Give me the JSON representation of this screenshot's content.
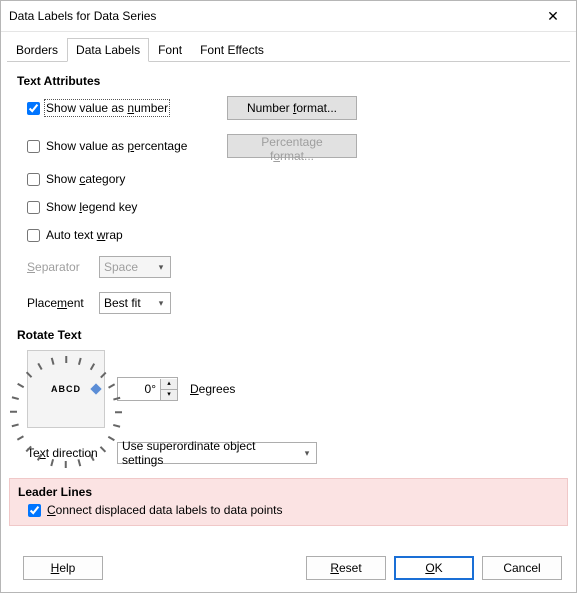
{
  "window": {
    "title": "Data Labels for Data Series",
    "series_name": " "
  },
  "tabs": {
    "borders": "Borders",
    "data_labels": "Data Labels",
    "font": "Font",
    "font_effects": "Font Effects"
  },
  "sections": {
    "text_attributes": "Text Attributes",
    "rotate_text": "Rotate Text",
    "leader_lines": "Leader Lines"
  },
  "checks": {
    "show_value_number": {
      "pre": "Show value as ",
      "u": "n",
      "post": "umber",
      "checked": true
    },
    "show_value_percentage": {
      "pre": "Show value as ",
      "u": "p",
      "post": "ercentage",
      "checked": false
    },
    "show_category": {
      "pre": "Show ",
      "u": "c",
      "post": "ategory",
      "checked": false
    },
    "show_legend_key": {
      "pre": "Show ",
      "u": "l",
      "post": "egend key",
      "checked": false
    },
    "auto_text_wrap": {
      "pre": "Auto text ",
      "u": "w",
      "post": "rap",
      "checked": false
    },
    "connect_leader": {
      "pre": "",
      "u": "C",
      "post": "onnect displaced data labels to data points",
      "checked": true
    }
  },
  "buttons": {
    "number_format": {
      "pre": "Number ",
      "u": "f",
      "post": "ormat..."
    },
    "percentage_format": {
      "pre": "Percentage f",
      "u": "o",
      "post": "rmat..."
    },
    "help": {
      "pre": "",
      "u": "H",
      "post": "elp"
    },
    "reset": {
      "pre": "",
      "u": "R",
      "post": "eset"
    },
    "ok": {
      "pre": "",
      "u": "O",
      "post": "K"
    },
    "cancel": {
      "pre": "",
      "u": "",
      "post": "Cancel"
    }
  },
  "labels": {
    "separator": {
      "pre": "",
      "u": "S",
      "post": "eparator"
    },
    "placement": {
      "pre": "Place",
      "u": "m",
      "post": "ent"
    },
    "degrees": {
      "pre": "",
      "u": "D",
      "post": "egrees"
    },
    "text_direction": {
      "pre": "Te",
      "u": "x",
      "post": "t direction"
    }
  },
  "fields": {
    "separator_value": "Space",
    "placement_value": "Best fit",
    "angle_value": "0°",
    "text_direction_value": "Use superordinate object settings"
  },
  "dial_center": "ABCD"
}
